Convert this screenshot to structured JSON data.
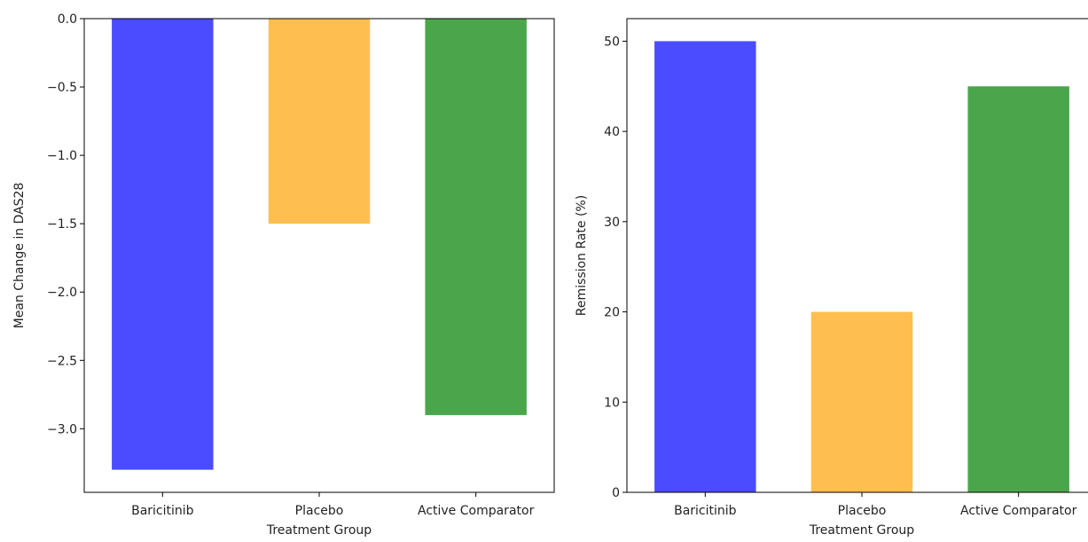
{
  "chart_data": [
    {
      "type": "bar",
      "categories": [
        "Baricitinib",
        "Placebo",
        "Active Comparator"
      ],
      "values": [
        -3.3,
        -1.5,
        -2.9
      ],
      "colors": [
        "#4b4bff",
        "#ffbe4f",
        "#4ba64b"
      ],
      "title": "",
      "xlabel": "Treatment Group",
      "ylabel": "Mean Change in DAS28",
      "ylim": [
        -3.465,
        0.0
      ],
      "yticks": [
        0.0,
        -0.5,
        -1.0,
        -1.5,
        -2.0,
        -2.5,
        -3.0
      ],
      "ytick_labels": [
        "0.0",
        "−0.5",
        "−1.0",
        "−1.5",
        "−2.0",
        "−2.5",
        "−3.0"
      ],
      "grid": false
    },
    {
      "type": "bar",
      "categories": [
        "Baricitinib",
        "Placebo",
        "Active Comparator"
      ],
      "values": [
        50,
        20,
        45
      ],
      "colors": [
        "#4b4bff",
        "#ffbe4f",
        "#4ba64b"
      ],
      "title": "",
      "xlabel": "Treatment Group",
      "ylabel": "Remission Rate (%)",
      "ylim": [
        0,
        52.5
      ],
      "yticks": [
        0,
        10,
        20,
        30,
        40,
        50
      ],
      "ytick_labels": [
        "0",
        "10",
        "20",
        "30",
        "40",
        "50"
      ],
      "grid": false
    }
  ]
}
